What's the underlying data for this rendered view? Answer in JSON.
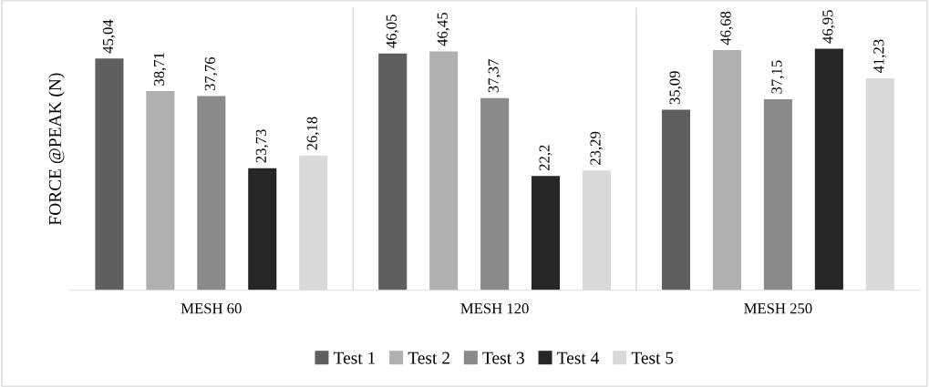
{
  "chart_data": {
    "type": "bar",
    "ylabel": "FORCE @PEAK (N)",
    "categories": [
      "MESH 60",
      "MESH 120",
      "MESH 250"
    ],
    "series": [
      {
        "name": "Test 1",
        "color": "#5f5f5f",
        "values": [
          45.04,
          46.05,
          35.09
        ],
        "value_labels": [
          "45,04",
          "46,05",
          "35,09"
        ]
      },
      {
        "name": "Test 2",
        "color": "#b0b0b0",
        "values": [
          38.71,
          46.45,
          46.68
        ],
        "value_labels": [
          "38,71",
          "46,45",
          "46,68"
        ]
      },
      {
        "name": "Test 3",
        "color": "#8a8a8a",
        "values": [
          37.76,
          37.37,
          37.15
        ],
        "value_labels": [
          "37,76",
          "37,37",
          "37,15"
        ]
      },
      {
        "name": "Test 4",
        "color": "#262626",
        "values": [
          23.73,
          22.2,
          46.95
        ],
        "value_labels": [
          "23,73",
          "22,2",
          "46,95"
        ]
      },
      {
        "name": "Test 5",
        "color": "#d9d9d9",
        "values": [
          26.18,
          23.29,
          41.23
        ],
        "value_labels": [
          "26,18",
          "23,29",
          "41,23"
        ]
      }
    ],
    "legend": "bottom"
  }
}
